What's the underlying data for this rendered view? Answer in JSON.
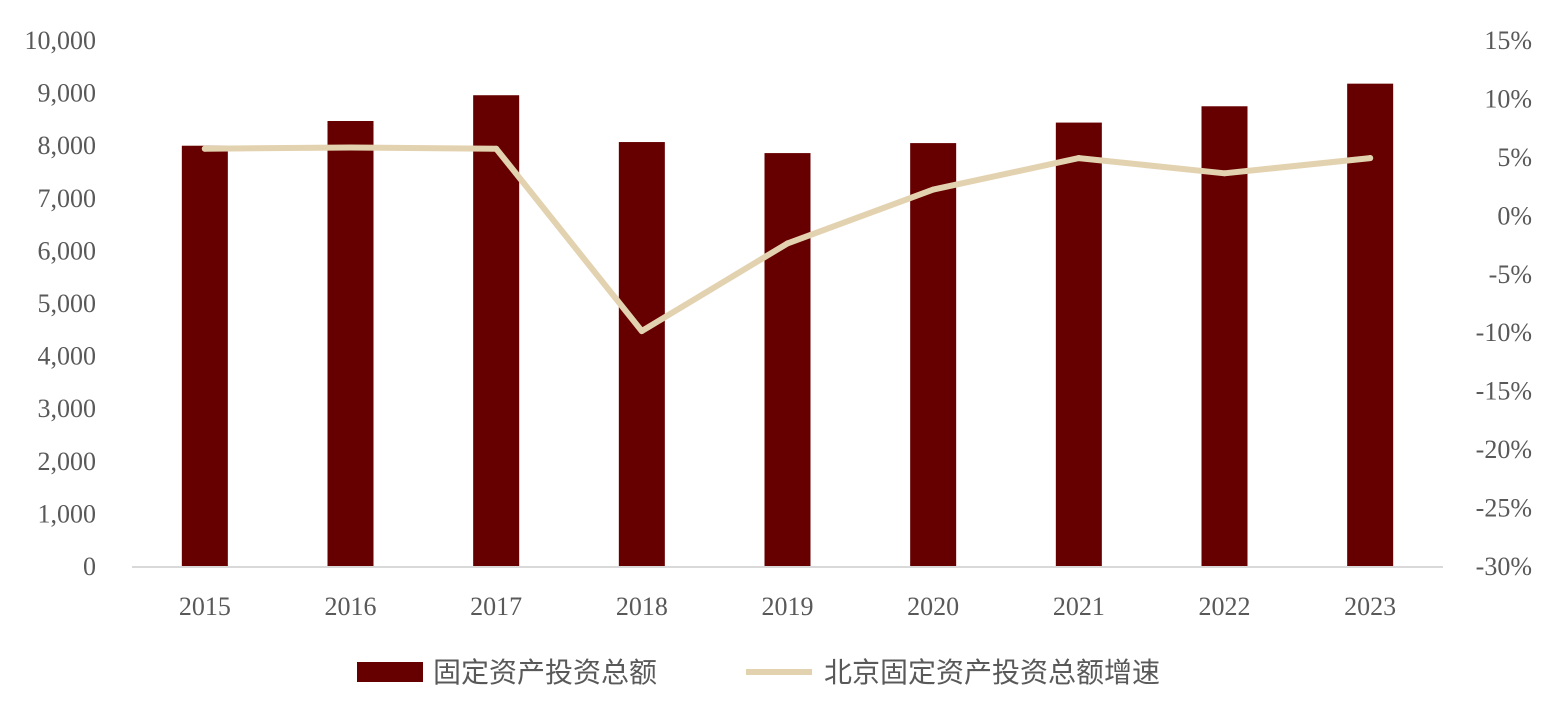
{
  "chart_data": {
    "type": "bar",
    "categories": [
      "2015",
      "2016",
      "2017",
      "2018",
      "2019",
      "2020",
      "2021",
      "2022",
      "2023"
    ],
    "series": [
      {
        "name": "固定资产投资总额",
        "type": "bar",
        "axis": "left",
        "color": "#660000",
        "values": [
          7990,
          8460,
          8950,
          8060,
          7850,
          8040,
          8430,
          8740,
          9170
        ]
      },
      {
        "name": "北京固定资产投资总额增速",
        "type": "line",
        "axis": "right",
        "color": "#E3D2B0",
        "values": [
          5.7,
          5.8,
          5.7,
          -9.9,
          -2.4,
          2.2,
          4.9,
          3.6,
          4.9
        ]
      }
    ],
    "y_left": {
      "lim": [
        0,
        10000
      ],
      "ticks": [
        0,
        1000,
        2000,
        3000,
        4000,
        5000,
        6000,
        7000,
        8000,
        9000,
        10000
      ],
      "tick_labels": [
        "0",
        "1,000",
        "2,000",
        "3,000",
        "4,000",
        "5,000",
        "6,000",
        "7,000",
        "8,000",
        "9,000",
        "10,000"
      ]
    },
    "y_right": {
      "lim": [
        -30,
        15
      ],
      "ticks": [
        -30,
        -25,
        -20,
        -15,
        -10,
        -5,
        0,
        5,
        10,
        15
      ],
      "tick_labels": [
        "-30%",
        "-25%",
        "-20%",
        "-15%",
        "-10%",
        "-5%",
        "0%",
        "5%",
        "10%",
        "15%"
      ]
    },
    "grid": false,
    "legend_position": "bottom"
  }
}
